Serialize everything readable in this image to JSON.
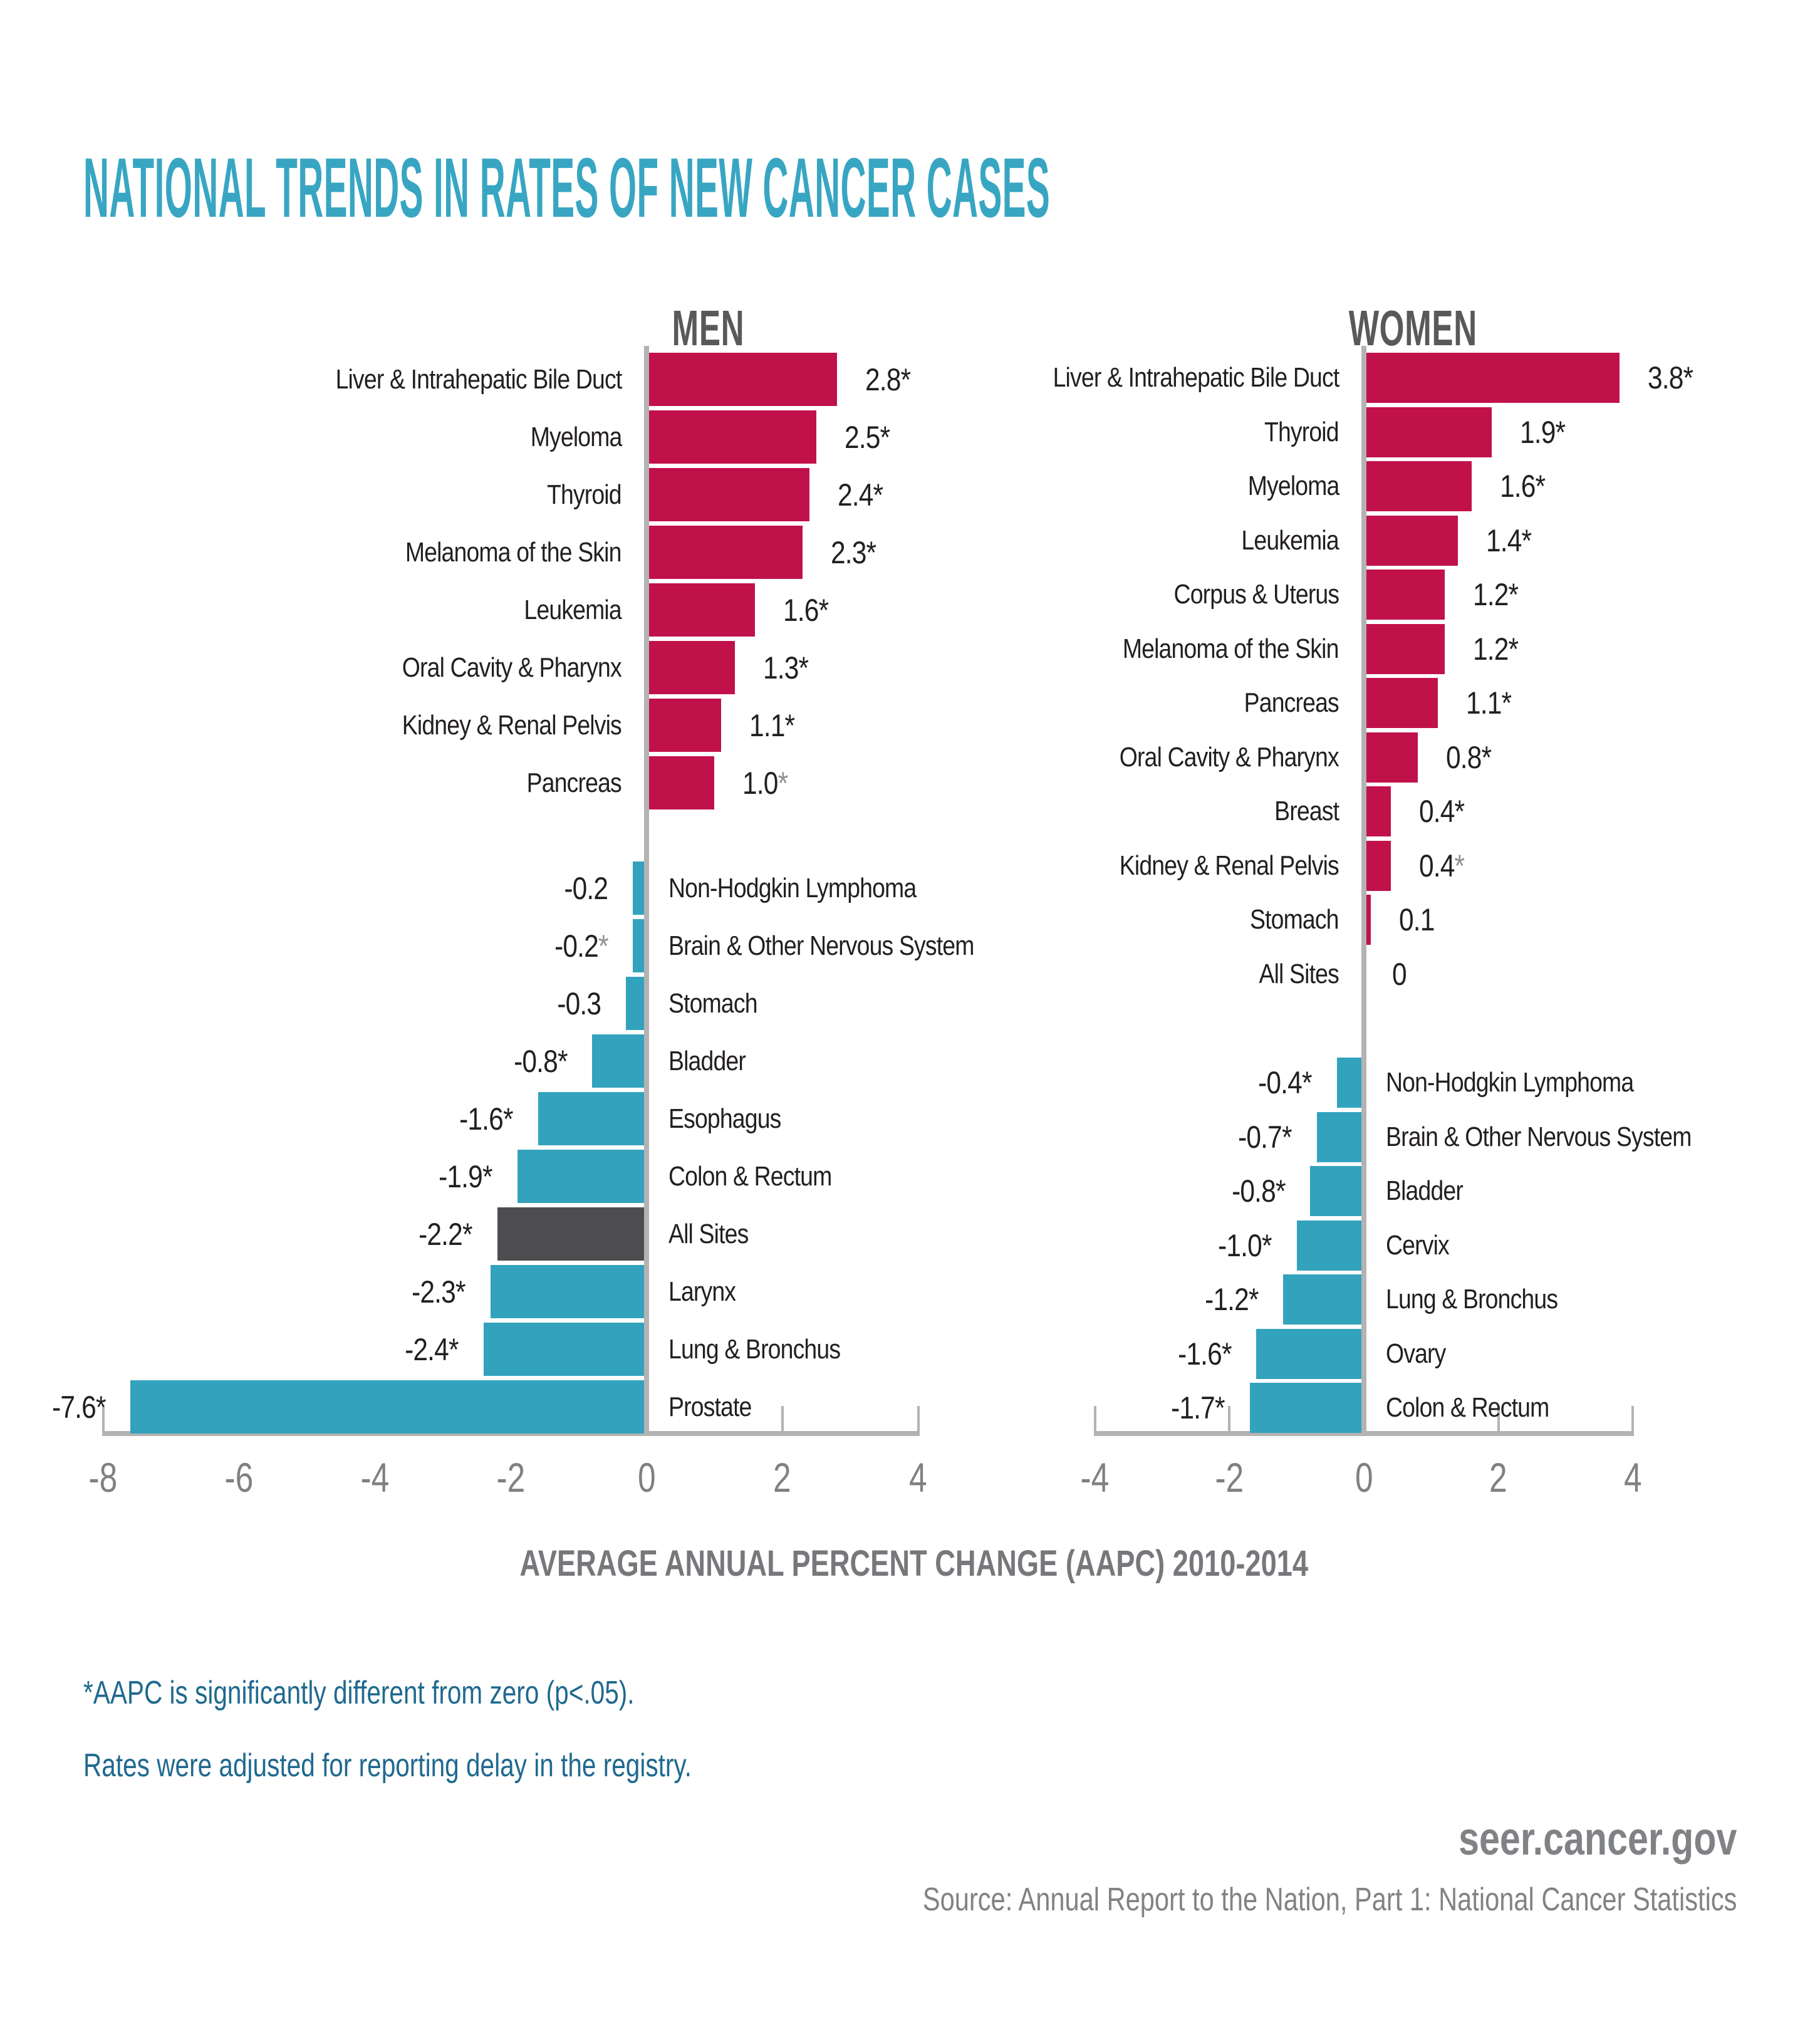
{
  "header": {
    "title": "NATIONAL TRENDS IN RATES OF NEW CANCER CASES"
  },
  "axis_caption": "AVERAGE ANNUAL PERCENT CHANGE (AAPC) 2010-2014",
  "footnotes": {
    "line1": "*AAPC is significantly different from zero (p<.05).",
    "line2": "Rates were adjusted for reporting delay in the registry."
  },
  "footer": {
    "site": "seer.cancer.gov",
    "source": "Source: Annual Report to the Nation, Part 1: National Cancer Statistics"
  },
  "colors": {
    "increase_bar": "#C1114A",
    "decrease_bar": "#33A2BC",
    "all_sites_bar": "#4D4D4F",
    "title_accent": "#38A6C2",
    "footnote_text": "#20698F",
    "axis_gray": "#B3B3B3",
    "label_black": "#231F20",
    "muted_star_gray": "#909093",
    "section_header_gray": "#59595C",
    "tick_label_gray": "#7F8083"
  },
  "chart_data": [
    {
      "type": "bar",
      "orientation": "horizontal",
      "title": "MEN",
      "xlabel": "AVERAGE ANNUAL PERCENT CHANGE (AAPC) 2010-2014",
      "xlim": [
        -8,
        4
      ],
      "xticks": [
        -8,
        -6,
        -4,
        -2,
        0,
        2,
        4
      ],
      "grid": false,
      "legend": false,
      "bars": [
        {
          "category": "Liver & Intrahepatic Bile Duct",
          "value": 2.8,
          "value_label": "2.8",
          "significant": true,
          "muted_star": false,
          "color": "increase_bar"
        },
        {
          "category": "Myeloma",
          "value": 2.5,
          "value_label": "2.5",
          "significant": true,
          "muted_star": false,
          "color": "increase_bar"
        },
        {
          "category": "Thyroid",
          "value": 2.4,
          "value_label": "2.4",
          "significant": true,
          "muted_star": false,
          "color": "increase_bar"
        },
        {
          "category": "Melanoma of the Skin",
          "value": 2.3,
          "value_label": "2.3",
          "significant": true,
          "muted_star": false,
          "color": "increase_bar"
        },
        {
          "category": "Leukemia",
          "value": 1.6,
          "value_label": "1.6",
          "significant": true,
          "muted_star": false,
          "color": "increase_bar"
        },
        {
          "category": "Oral Cavity & Pharynx",
          "value": 1.3,
          "value_label": "1.3",
          "significant": true,
          "muted_star": false,
          "color": "increase_bar"
        },
        {
          "category": "Kidney & Renal Pelvis",
          "value": 1.1,
          "value_label": "1.1",
          "significant": true,
          "muted_star": false,
          "color": "increase_bar"
        },
        {
          "category": "Pancreas",
          "value": 1.0,
          "value_label": "1.0",
          "significant": true,
          "muted_star": true,
          "color": "increase_bar"
        },
        {
          "category": "Non-Hodgkin Lymphoma",
          "value": -0.2,
          "value_label": "-0.2",
          "significant": false,
          "muted_star": false,
          "color": "decrease_bar"
        },
        {
          "category": "Brain & Other Nervous System",
          "value": -0.2,
          "value_label": "-0.2",
          "significant": true,
          "muted_star": true,
          "color": "decrease_bar"
        },
        {
          "category": "Stomach",
          "value": -0.3,
          "value_label": "-0.3",
          "significant": false,
          "muted_star": false,
          "color": "decrease_bar"
        },
        {
          "category": "Bladder",
          "value": -0.8,
          "value_label": "-0.8",
          "significant": true,
          "muted_star": false,
          "color": "decrease_bar"
        },
        {
          "category": "Esophagus",
          "value": -1.6,
          "value_label": "-1.6",
          "significant": true,
          "muted_star": false,
          "color": "decrease_bar"
        },
        {
          "category": "Colon & Rectum",
          "value": -1.9,
          "value_label": "-1.9",
          "significant": true,
          "muted_star": false,
          "color": "decrease_bar"
        },
        {
          "category": "All Sites",
          "value": -2.2,
          "value_label": "-2.2",
          "significant": true,
          "muted_star": false,
          "color": "all_sites_bar"
        },
        {
          "category": "Larynx",
          "value": -2.3,
          "value_label": "-2.3",
          "significant": true,
          "muted_star": false,
          "color": "decrease_bar"
        },
        {
          "category": "Lung & Bronchus",
          "value": -2.4,
          "value_label": "-2.4",
          "significant": true,
          "muted_star": false,
          "color": "decrease_bar"
        },
        {
          "category": "Prostate",
          "value": -7.6,
          "value_label": "-7.6",
          "significant": true,
          "muted_star": false,
          "color": "decrease_bar"
        }
      ]
    },
    {
      "type": "bar",
      "orientation": "horizontal",
      "title": "WOMEN",
      "xlabel": "AVERAGE ANNUAL PERCENT CHANGE (AAPC) 2010-2014",
      "xlim": [
        -4,
        4
      ],
      "xticks": [
        -4,
        -2,
        0,
        2,
        4
      ],
      "grid": false,
      "legend": false,
      "bars": [
        {
          "category": "Liver & Intrahepatic Bile Duct",
          "value": 3.8,
          "value_label": "3.8",
          "significant": true,
          "muted_star": false,
          "color": "increase_bar"
        },
        {
          "category": "Thyroid",
          "value": 1.9,
          "value_label": "1.9",
          "significant": true,
          "muted_star": false,
          "color": "increase_bar"
        },
        {
          "category": "Myeloma",
          "value": 1.6,
          "value_label": "1.6",
          "significant": true,
          "muted_star": false,
          "color": "increase_bar"
        },
        {
          "category": "Leukemia",
          "value": 1.4,
          "value_label": "1.4",
          "significant": true,
          "muted_star": false,
          "color": "increase_bar"
        },
        {
          "category": "Corpus & Uterus",
          "value": 1.2,
          "value_label": "1.2",
          "significant": true,
          "muted_star": false,
          "color": "increase_bar"
        },
        {
          "category": "Melanoma of the Skin",
          "value": 1.2,
          "value_label": "1.2",
          "significant": true,
          "muted_star": false,
          "color": "increase_bar"
        },
        {
          "category": "Pancreas",
          "value": 1.1,
          "value_label": "1.1",
          "significant": true,
          "muted_star": false,
          "color": "increase_bar"
        },
        {
          "category": "Oral Cavity & Pharynx",
          "value": 0.8,
          "value_label": "0.8",
          "significant": true,
          "muted_star": false,
          "color": "increase_bar"
        },
        {
          "category": "Breast",
          "value": 0.4,
          "value_label": "0.4",
          "significant": true,
          "muted_star": false,
          "color": "increase_bar"
        },
        {
          "category": "Kidney & Renal Pelvis",
          "value": 0.4,
          "value_label": "0.4",
          "significant": true,
          "muted_star": true,
          "color": "increase_bar"
        },
        {
          "category": "Stomach",
          "value": 0.1,
          "value_label": "0.1",
          "significant": false,
          "muted_star": false,
          "color": "increase_bar"
        },
        {
          "category": "All Sites",
          "value": 0,
          "value_label": "0",
          "significant": false,
          "muted_star": false,
          "color": "increase_bar"
        },
        {
          "category": "Non-Hodgkin Lymphoma",
          "value": -0.4,
          "value_label": "-0.4",
          "significant": true,
          "muted_star": false,
          "color": "decrease_bar"
        },
        {
          "category": "Brain & Other Nervous System",
          "value": -0.7,
          "value_label": "-0.7",
          "significant": true,
          "muted_star": false,
          "color": "decrease_bar"
        },
        {
          "category": "Bladder",
          "value": -0.8,
          "value_label": "-0.8",
          "significant": true,
          "muted_star": false,
          "color": "decrease_bar"
        },
        {
          "category": "Cervix",
          "value": -1.0,
          "value_label": "-1.0",
          "significant": true,
          "muted_star": false,
          "color": "decrease_bar"
        },
        {
          "category": "Lung & Bronchus",
          "value": -1.2,
          "value_label": "-1.2",
          "significant": true,
          "muted_star": false,
          "color": "decrease_bar"
        },
        {
          "category": "Ovary",
          "value": -1.6,
          "value_label": "-1.6",
          "significant": true,
          "muted_star": false,
          "color": "decrease_bar"
        },
        {
          "category": "Colon & Rectum",
          "value": -1.7,
          "value_label": "-1.7",
          "significant": true,
          "muted_star": false,
          "color": "decrease_bar"
        }
      ]
    }
  ]
}
